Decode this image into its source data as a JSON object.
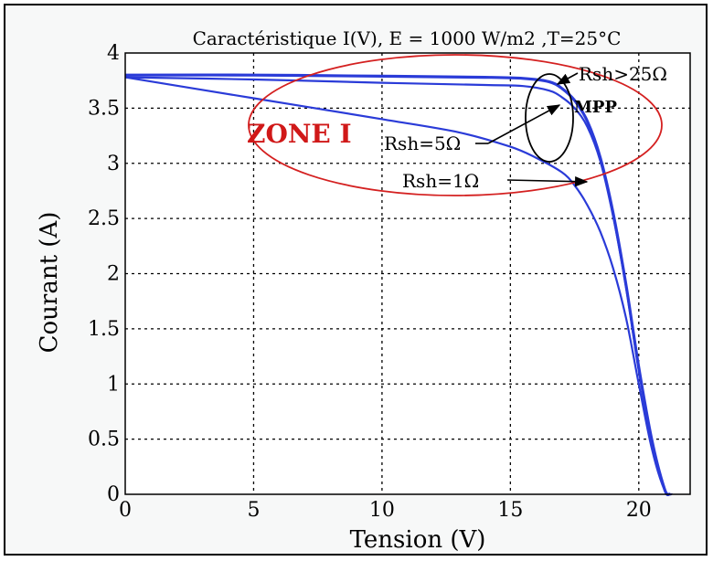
{
  "chart_data": {
    "type": "line",
    "title": "Caractéristique I(V), E = 1000 W/m2 ,T=25°C",
    "xlabel": "Tension (V)",
    "ylabel": "Courant (A)",
    "xlim": [
      0,
      22
    ],
    "ylim": [
      0,
      4
    ],
    "xticks": [
      "0",
      "5",
      "10",
      "15",
      "20"
    ],
    "yticks": [
      "0",
      "0.5",
      "1",
      "1.5",
      "2",
      "2.5",
      "3",
      "3.5",
      "4"
    ],
    "grid": true,
    "series": [
      {
        "name": "Rsh>25Ω",
        "x": [
          0,
          5,
          10,
          14,
          15.5,
          16.5,
          17,
          17.5,
          18,
          18.5,
          19,
          19.5,
          20,
          20.5,
          21,
          21.2
        ],
        "y": [
          3.8,
          3.8,
          3.79,
          3.78,
          3.77,
          3.74,
          3.68,
          3.57,
          3.38,
          3.05,
          2.55,
          1.9,
          1.15,
          0.5,
          0.05,
          0
        ]
      },
      {
        "name": "Rsh=5Ω",
        "x": [
          0,
          5,
          10,
          14,
          15.5,
          16.5,
          17,
          17.5,
          18,
          18.5,
          19,
          19.5,
          20,
          20.5,
          21,
          21.2
        ],
        "y": [
          3.78,
          3.76,
          3.73,
          3.71,
          3.7,
          3.66,
          3.6,
          3.5,
          3.33,
          3.02,
          2.52,
          1.88,
          1.12,
          0.48,
          0.04,
          0
        ]
      },
      {
        "name": "Rsh=1Ω",
        "x": [
          0,
          5,
          10,
          13,
          15,
          16,
          17,
          17.5,
          18,
          18.5,
          19,
          19.5,
          20,
          20.5,
          21,
          21.3
        ],
        "y": [
          3.78,
          3.59,
          3.4,
          3.28,
          3.15,
          3.05,
          2.92,
          2.8,
          2.62,
          2.38,
          2.05,
          1.6,
          1.0,
          0.42,
          0.04,
          0
        ]
      }
    ],
    "annotations": {
      "zone": "ZONE I",
      "mpp": "MPP",
      "rsh_high": "Rsh>25Ω",
      "rsh_5": "Rsh=5Ω",
      "rsh_1": "Rsh=1Ω"
    },
    "colors": {
      "curves": "#2a3bd8",
      "zone_ellipse": "#d42020",
      "zone_text": "#d01818",
      "grid": "#000000"
    }
  }
}
